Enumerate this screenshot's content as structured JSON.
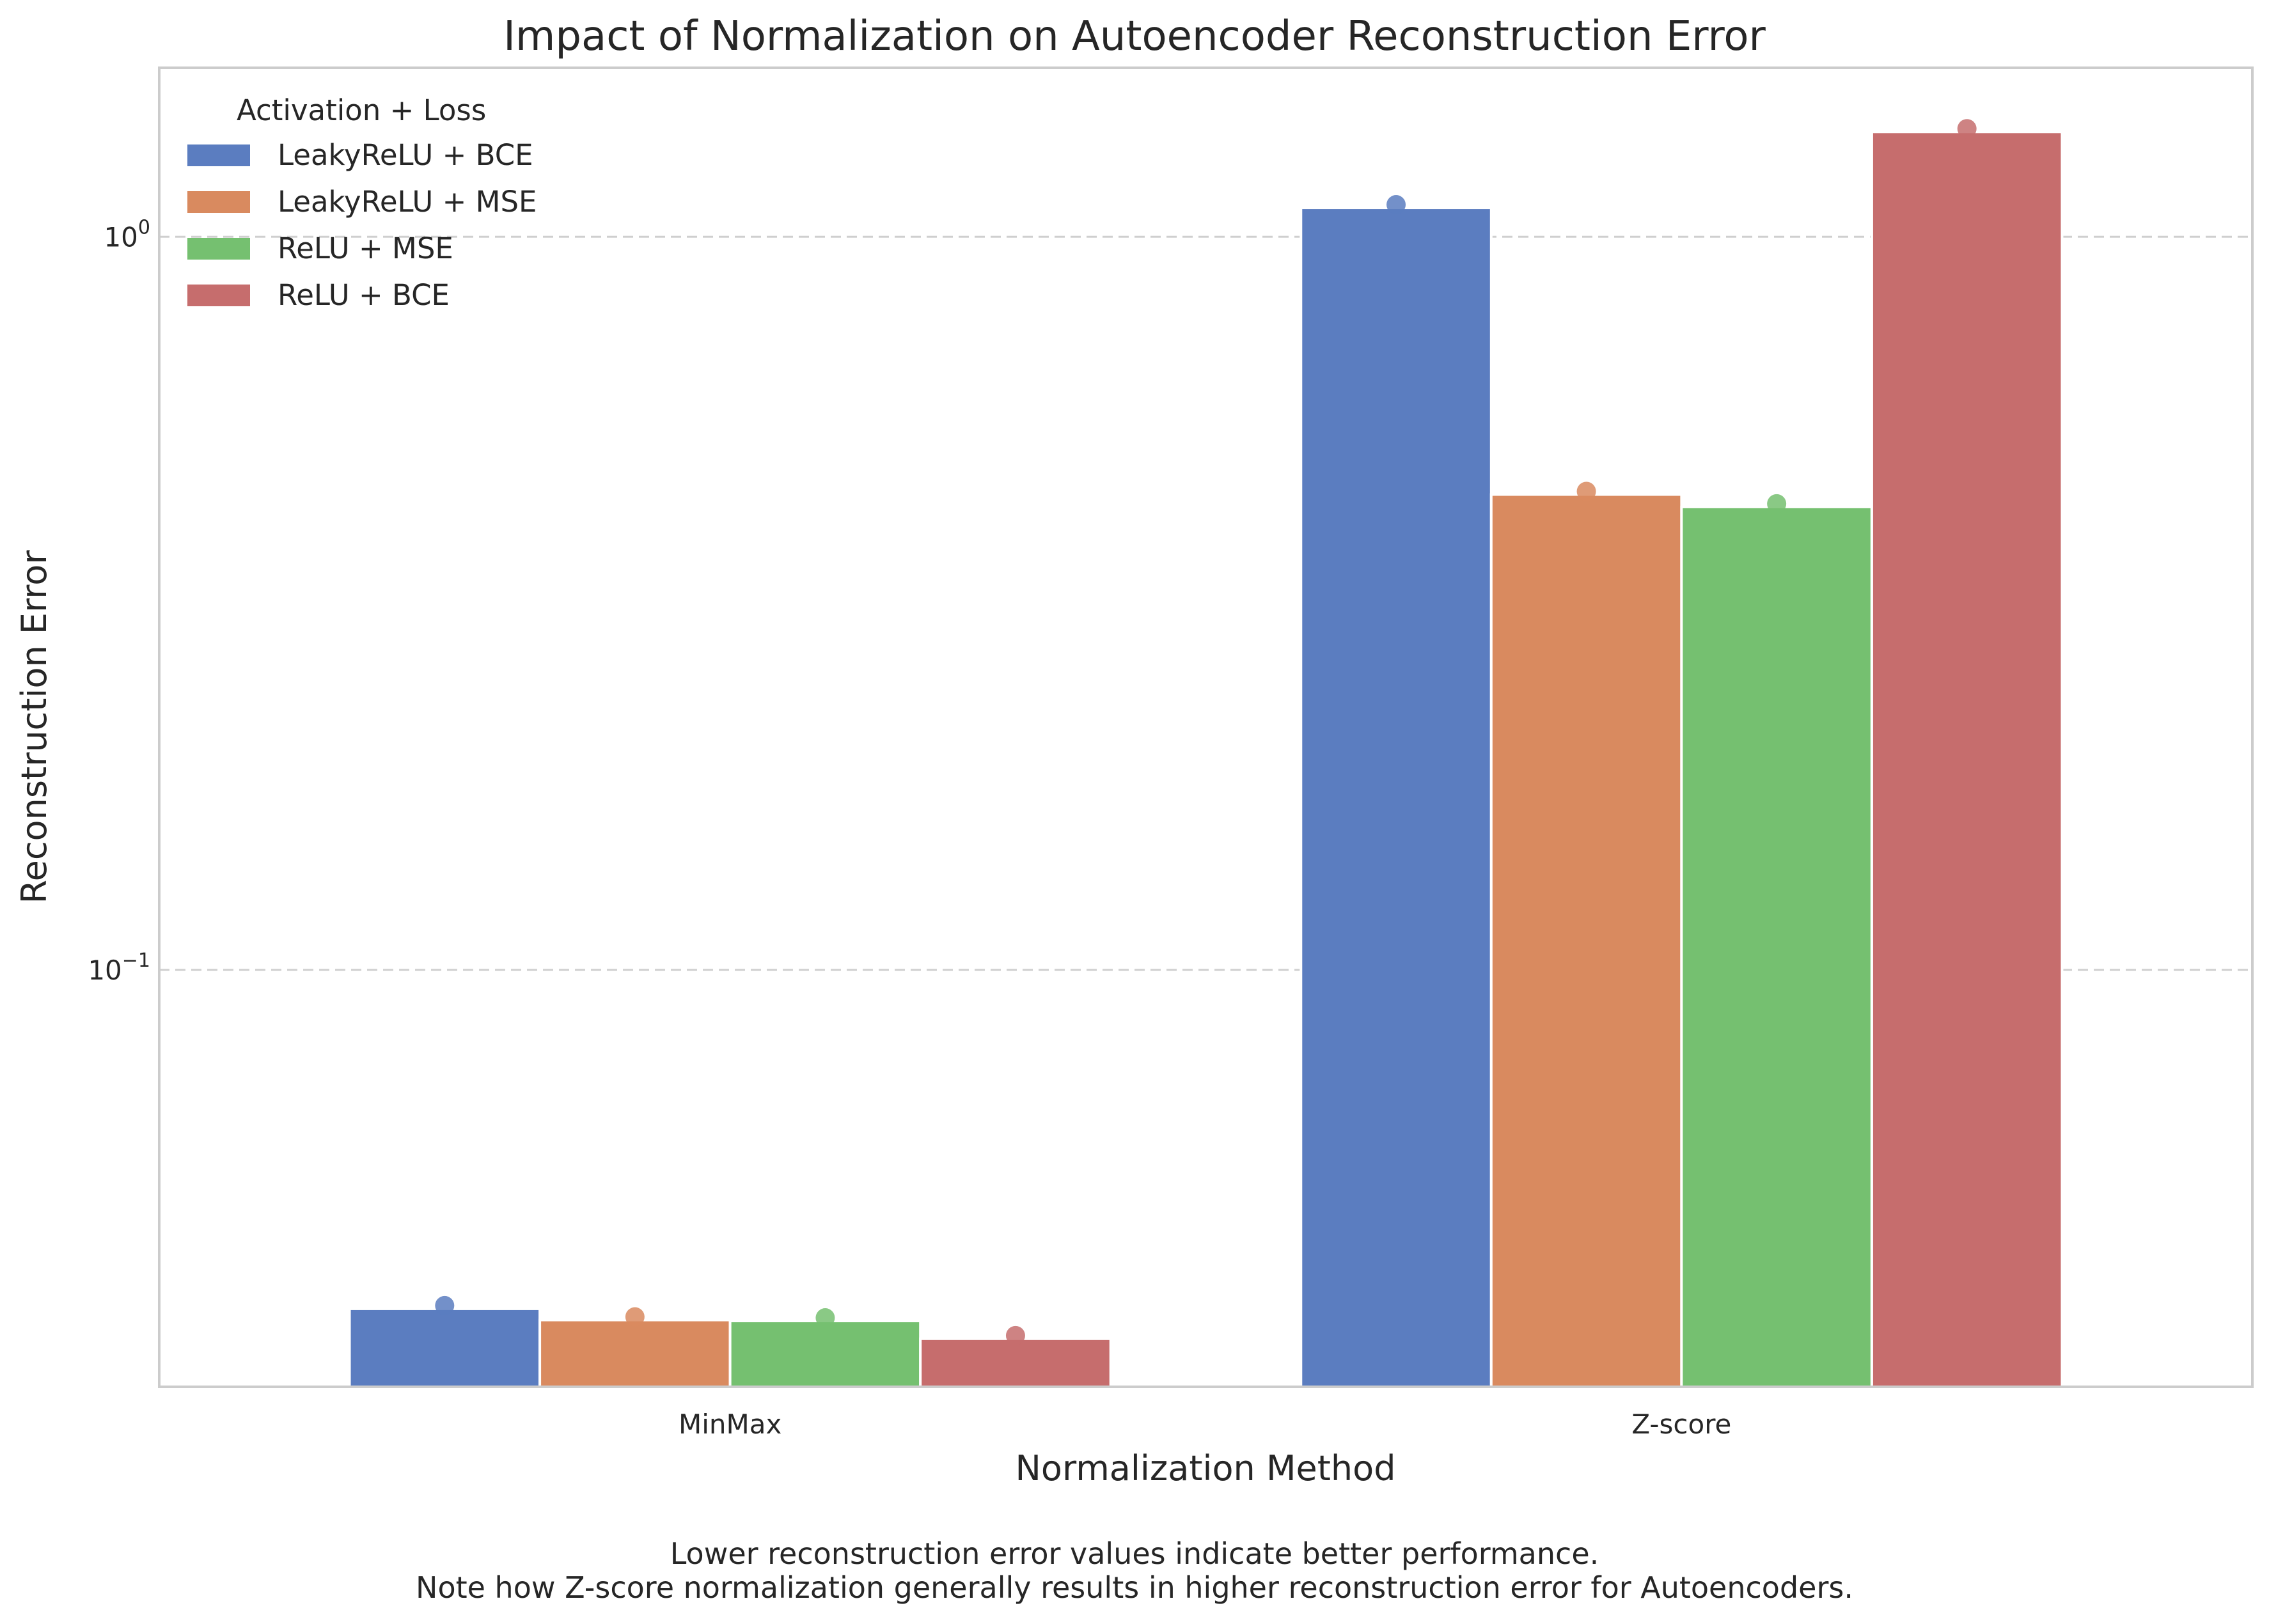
{
  "chart_data": {
    "type": "bar",
    "title": "Impact of Normalization on Autoencoder Reconstruction Error",
    "xlabel": "Normalization Method",
    "ylabel": "Reconstruction Error",
    "yscale": "log",
    "ylim": [
      0.027,
      1.7
    ],
    "yticks": [
      {
        "value": 1.0,
        "base": "10",
        "exp": "0"
      },
      {
        "value": 0.1,
        "base": "10",
        "exp": "−1"
      }
    ],
    "grid": "horizontal dashed",
    "categories": [
      "MinMax",
      "Z-score"
    ],
    "legend_title": "Activation + Loss",
    "legend_position": "top-left",
    "series": [
      {
        "name": "LeakyReLU + BCE",
        "color": "#5b7dc0",
        "values": [
          0.0345,
          1.095
        ]
      },
      {
        "name": "LeakyReLU + MSE",
        "color": "#d98a5f",
        "values": [
          0.0333,
          0.445
        ]
      },
      {
        "name": "ReLU + MSE",
        "color": "#75c070",
        "values": [
          0.0332,
          0.428
        ]
      },
      {
        "name": "ReLU + BCE",
        "color": "#c66d6d",
        "values": [
          0.0314,
          1.39
        ]
      }
    ],
    "notes": [
      "Lower reconstruction error values indicate better performance.",
      "Note how Z-score normalization generally results in higher reconstruction error for Autoencoders."
    ]
  }
}
